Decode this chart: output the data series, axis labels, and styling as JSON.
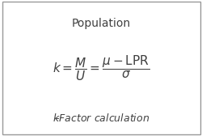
{
  "title": "Population",
  "caption": "$k$-Factor calculation",
  "title_fontsize": 10,
  "formula_fontsize": 11,
  "caption_fontsize": 9,
  "bg_color": "#ffffff",
  "border_color": "#999999",
  "text_color": "#404040"
}
